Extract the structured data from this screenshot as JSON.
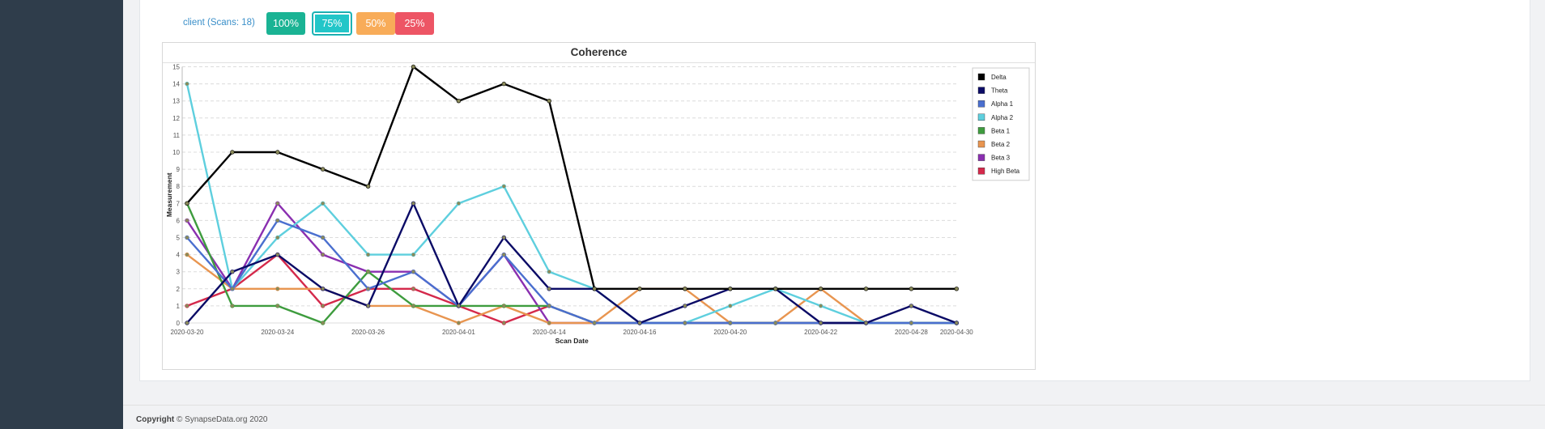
{
  "header": {
    "client_label": "client (Scans: 18)",
    "buttons": [
      {
        "label": "100%",
        "color": "#1ab394",
        "active": false
      },
      {
        "label": "75%",
        "color": "#23c6c8",
        "active": true
      },
      {
        "label": "50%",
        "color": "#f8ac59",
        "active": false
      },
      {
        "label": "25%",
        "color": "#ed5565",
        "active": false
      }
    ]
  },
  "footer": {
    "copyright_bold": "Copyright",
    "copyright_text": " © SynapseData.org 2020"
  },
  "chart_data": {
    "type": "line",
    "title": "Coherence",
    "xlabel": "Scan Date",
    "ylabel": "Measurement",
    "ylim": [
      0,
      15
    ],
    "yticks": [
      0,
      1,
      2,
      3,
      4,
      5,
      6,
      7,
      8,
      9,
      10,
      11,
      12,
      13,
      14,
      15
    ],
    "xtick_labels": [
      "2020-03-20",
      "2020-03-24",
      "2020-03-26",
      "2020-04-01",
      "2020-04-14",
      "2020-04-16",
      "2020-04-20",
      "2020-04-22",
      "2020-04-28",
      "2020-04-30"
    ],
    "xtick_index": [
      0,
      2,
      4,
      6,
      8,
      10,
      12,
      14,
      16,
      17
    ],
    "grid": true,
    "legend_position": "top-right",
    "series": [
      {
        "name": "Delta",
        "color": "#000000",
        "values": [
          7,
          10,
          10,
          9,
          8,
          15,
          13,
          14,
          13,
          2,
          2,
          2,
          2,
          2,
          2,
          2,
          2,
          2
        ]
      },
      {
        "name": "Theta",
        "color": "#0b0b66",
        "values": [
          0,
          3,
          4,
          2,
          1,
          7,
          1,
          5,
          2,
          2,
          0,
          1,
          2,
          2,
          0,
          0,
          1,
          0
        ]
      },
      {
        "name": "Alpha 1",
        "color": "#4a6fcf",
        "values": [
          5,
          2,
          6,
          5,
          2,
          3,
          1,
          4,
          1,
          0,
          0,
          0,
          0,
          0,
          0,
          0,
          0,
          0
        ]
      },
      {
        "name": "Alpha 2",
        "color": "#5ecfde",
        "values": [
          14,
          2,
          5,
          7,
          4,
          4,
          7,
          8,
          3,
          2,
          0,
          0,
          1,
          2,
          1,
          0,
          0,
          0
        ]
      },
      {
        "name": "Beta 1",
        "color": "#3e9c3e",
        "values": [
          7,
          1,
          1,
          0,
          3,
          1,
          1,
          1,
          1,
          0,
          0,
          0,
          0,
          0,
          0,
          0,
          0,
          0
        ]
      },
      {
        "name": "Beta 2",
        "color": "#e89550",
        "values": [
          4,
          2,
          2,
          2,
          1,
          1,
          0,
          1,
          0,
          0,
          2,
          2,
          0,
          0,
          2,
          0,
          0,
          0
        ]
      },
      {
        "name": "Beta 3",
        "color": "#8a2fb0",
        "values": [
          6,
          2,
          7,
          4,
          3,
          3,
          1,
          4,
          0,
          0,
          0,
          0,
          0,
          0,
          0,
          0,
          0,
          0
        ]
      },
      {
        "name": "High Beta",
        "color": "#d4294b",
        "values": [
          1,
          2,
          4,
          1,
          2,
          2,
          1,
          0,
          1,
          0,
          0,
          0,
          0,
          0,
          0,
          0,
          0,
          0
        ]
      }
    ]
  }
}
